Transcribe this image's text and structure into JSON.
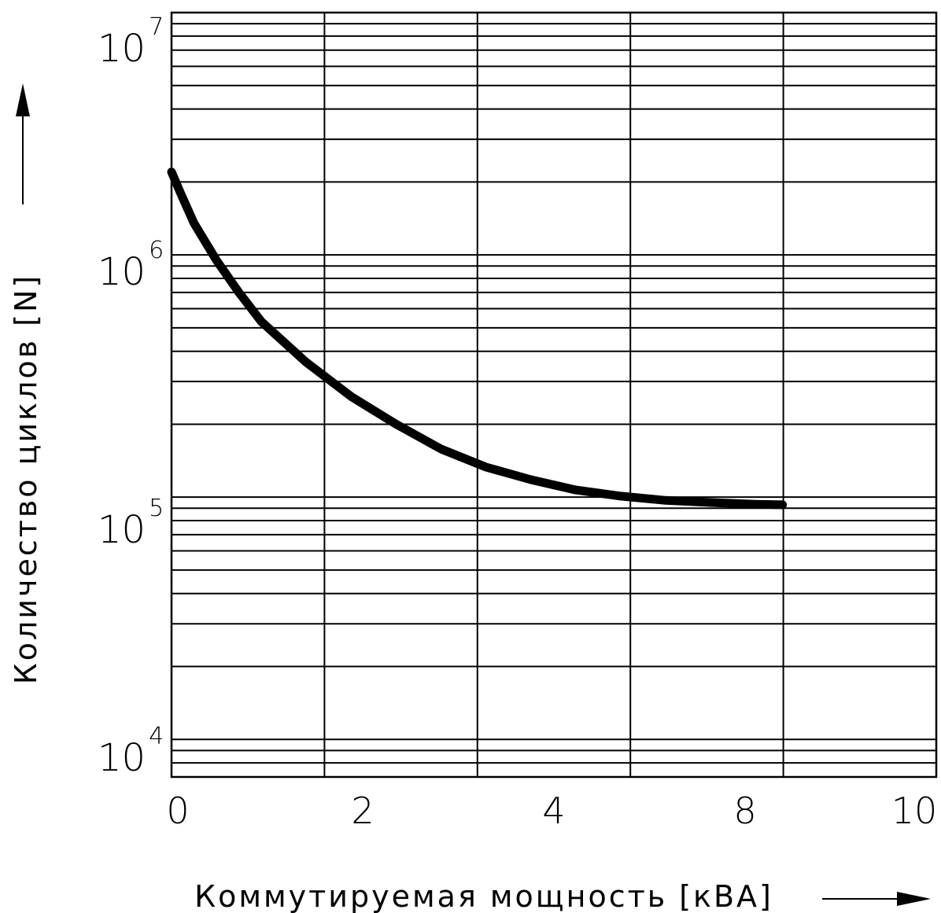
{
  "chart_data": {
    "type": "line",
    "xlabel": "Коммутируемая мощность [кВА]",
    "ylabel": "Количество циклов [N]",
    "x_ticks": [
      "0",
      "2",
      "4",
      "8",
      "10"
    ],
    "y_ticks": [
      {
        "base": "10",
        "exp": "4"
      },
      {
        "base": "10",
        "exp": "5"
      },
      {
        "base": "10",
        "exp": "6"
      },
      {
        "base": "10",
        "exp": "7"
      }
    ],
    "y_scale": "log",
    "ylim": [
      7000,
      10000000
    ],
    "xlim": [
      0,
      10
    ],
    "grid": true,
    "series": [
      {
        "x": [
          0,
          0.1,
          0.25,
          0.5,
          0.75,
          1.0,
          1.5,
          2.0,
          2.5,
          3.0,
          3.5,
          4.0,
          4.5,
          5.0,
          5.5,
          6.0,
          6.5,
          6.8
        ],
        "y": [
          2200000,
          1800000,
          1350000,
          950000,
          700000,
          530000,
          360000,
          260000,
          200000,
          158000,
          133000,
          118000,
          107000,
          101000,
          97000,
          95000,
          93500,
          93000
        ]
      }
    ]
  }
}
